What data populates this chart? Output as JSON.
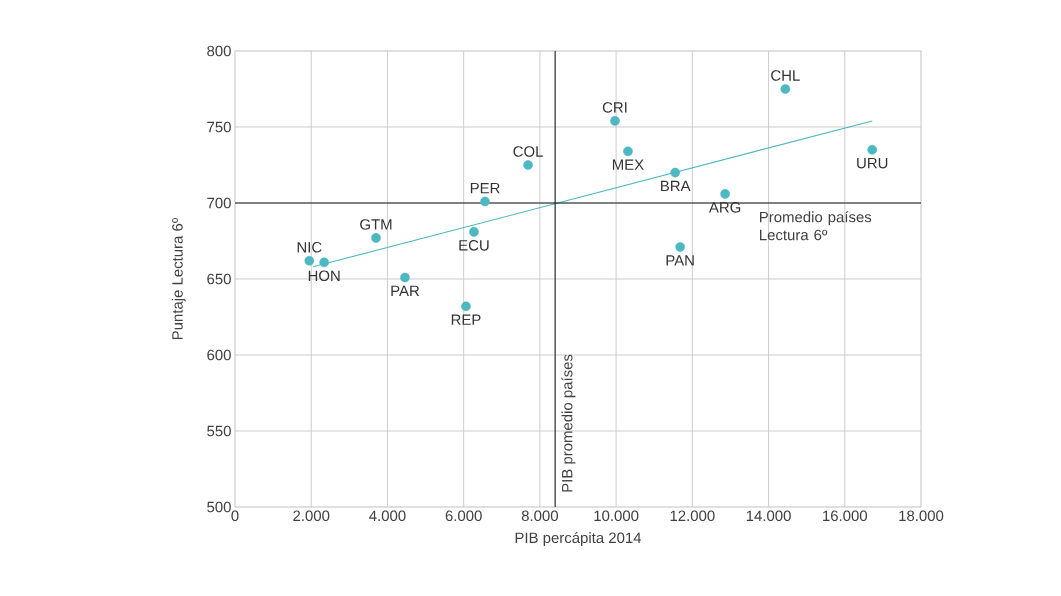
{
  "chart_data": {
    "type": "scatter",
    "xlabel": "PIB percápita 2014",
    "ylabel": "Puntaje Lectura 6º",
    "xlim": [
      0,
      18000
    ],
    "ylim": [
      500,
      800
    ],
    "xticks": [
      0,
      {
        "value": 2000,
        "label": "2.000"
      },
      {
        "value": 4000,
        "label": "4.000"
      },
      {
        "value": 6000,
        "label": "6.000"
      },
      {
        "value": 8000,
        "label": "8.000"
      },
      {
        "value": 10000,
        "label": "10.000"
      },
      {
        "value": 12000,
        "label": "12.000"
      },
      {
        "value": 14000,
        "label": "14.000"
      },
      {
        "value": 16000,
        "label": "16.000"
      },
      {
        "value": 18000,
        "label": "18.000"
      }
    ],
    "yticks": [
      500,
      550,
      600,
      650,
      700,
      750,
      800
    ],
    "grid": true,
    "marker": "circle",
    "series": [
      {
        "type": "scatter",
        "color": "#4db8c2",
        "x": [
          1950,
          2340,
          3700,
          4460,
          6060,
          6270,
          6560,
          7690,
          9970,
          10310,
          11550,
          11680,
          12860,
          14440,
          16720
        ],
        "values": [
          662,
          661,
          677,
          651,
          632,
          681,
          701,
          725,
          754,
          734,
          720,
          671,
          706,
          775,
          735
        ]
      },
      {
        "type": "line",
        "color": "#4db8c2",
        "marker": "none",
        "x": [
          2050,
          16720
        ],
        "values": [
          658,
          754
        ]
      }
    ],
    "ref_lines": [
      {
        "axis": "y",
        "value": 700,
        "label": "Promedio países Lectura 6º",
        "color": "#1a1a1a"
      },
      {
        "axis": "x",
        "value": 8400,
        "label": "PIB promedio países",
        "color": "#1a1a1a"
      }
    ],
    "annotations": [
      {
        "text": "NIC",
        "x": 1950,
        "y": 662
      },
      {
        "text": "HON",
        "x": 2340,
        "y": 661
      },
      {
        "text": "GTM",
        "x": 3700,
        "y": 677
      },
      {
        "text": "PAR",
        "x": 4460,
        "y": 651
      },
      {
        "text": "REP",
        "x": 6060,
        "y": 632
      },
      {
        "text": "ECU",
        "x": 6270,
        "y": 681
      },
      {
        "text": "PER",
        "x": 6560,
        "y": 701
      },
      {
        "text": "COL",
        "x": 7690,
        "y": 725
      },
      {
        "text": "CRI",
        "x": 9970,
        "y": 754
      },
      {
        "text": "MEX",
        "x": 10310,
        "y": 734
      },
      {
        "text": "BRA",
        "x": 11550,
        "y": 720
      },
      {
        "text": "PAN",
        "x": 11680,
        "y": 671
      },
      {
        "text": "ARG",
        "x": 12860,
        "y": 706
      },
      {
        "text": "CHL",
        "x": 14440,
        "y": 775
      },
      {
        "text": "URU",
        "x": 16720,
        "y": 735
      }
    ]
  }
}
